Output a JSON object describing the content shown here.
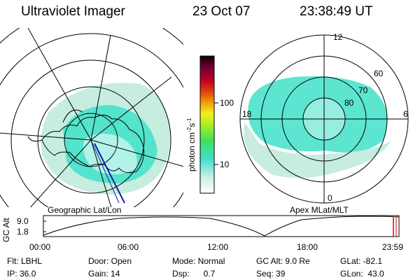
{
  "header": {
    "title": "Ultraviolet Imager",
    "date": "23 Oct 07",
    "time": "23:38:49 UT"
  },
  "left_panel": {
    "caption": "Geographic Lat/Lon"
  },
  "right_panel": {
    "caption": "Apex MLat/MLT",
    "mlt_labels": {
      "top": "12",
      "left": "18",
      "right": "6",
      "bottom": "0"
    },
    "lat_labels": [
      "60",
      "70",
      "80"
    ]
  },
  "colorbar": {
    "unit_label": "photon cm",
    "unit_sup1": "-2",
    "unit_mid": "s",
    "unit_sup2": "-1",
    "ticks": [
      "100",
      "10"
    ]
  },
  "altitude_plot": {
    "ylabel": "GC Alt",
    "yticks": [
      "9.0",
      "1.8"
    ],
    "xticks": [
      "00:00",
      "06:00",
      "12:00",
      "18:00",
      "23:59"
    ]
  },
  "info": {
    "filter": "Flt: LBHL",
    "ip": "IP: 36.0",
    "door": "Door: Open",
    "gain": "Gain: 14",
    "mode": "Mode: Normal",
    "dsp": "Dsp:      0.7",
    "gc_alt": "GC Alt: 9.0 Re",
    "seq": "Seq: 39",
    "glat": "GLat: -82.1",
    "glon": "GLon:  43.0"
  },
  "colors": {
    "aurora_main": "#3fe0c8",
    "aurora_dim": "#b8e8d8",
    "orbit_line": "#1020a0",
    "marker": "#e00000"
  }
}
